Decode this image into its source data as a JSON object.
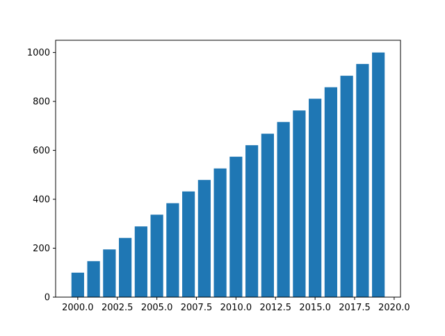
{
  "chart_data": {
    "type": "bar",
    "title": "",
    "xlabel": "",
    "ylabel": "",
    "x": [
      2000,
      2001,
      2002,
      2003,
      2004,
      2005,
      2006,
      2007,
      2008,
      2009,
      2010,
      2011,
      2012,
      2013,
      2014,
      2015,
      2016,
      2017,
      2018,
      2019
    ],
    "values": [
      100,
      147,
      195,
      242,
      289,
      337,
      384,
      432,
      479,
      526,
      574,
      621,
      668,
      716,
      763,
      811,
      858,
      905,
      953,
      1000
    ],
    "xlim": [
      1998.6,
      2020.4
    ],
    "ylim": [
      0,
      1050
    ],
    "xticks": [
      2000.0,
      2002.5,
      2005.0,
      2007.5,
      2010.0,
      2012.5,
      2015.0,
      2017.5,
      2020.0
    ],
    "xtick_labels": [
      "2000.0",
      "2002.5",
      "2005.0",
      "2007.5",
      "2010.0",
      "2012.5",
      "2015.0",
      "2017.5",
      "2020.0"
    ],
    "yticks": [
      0,
      200,
      400,
      600,
      800,
      1000
    ],
    "ytick_labels": [
      "0",
      "200",
      "400",
      "600",
      "800",
      "1000"
    ],
    "bar_width": 0.8,
    "bar_color": "#1f77b4",
    "grid": false,
    "legend": "none"
  }
}
